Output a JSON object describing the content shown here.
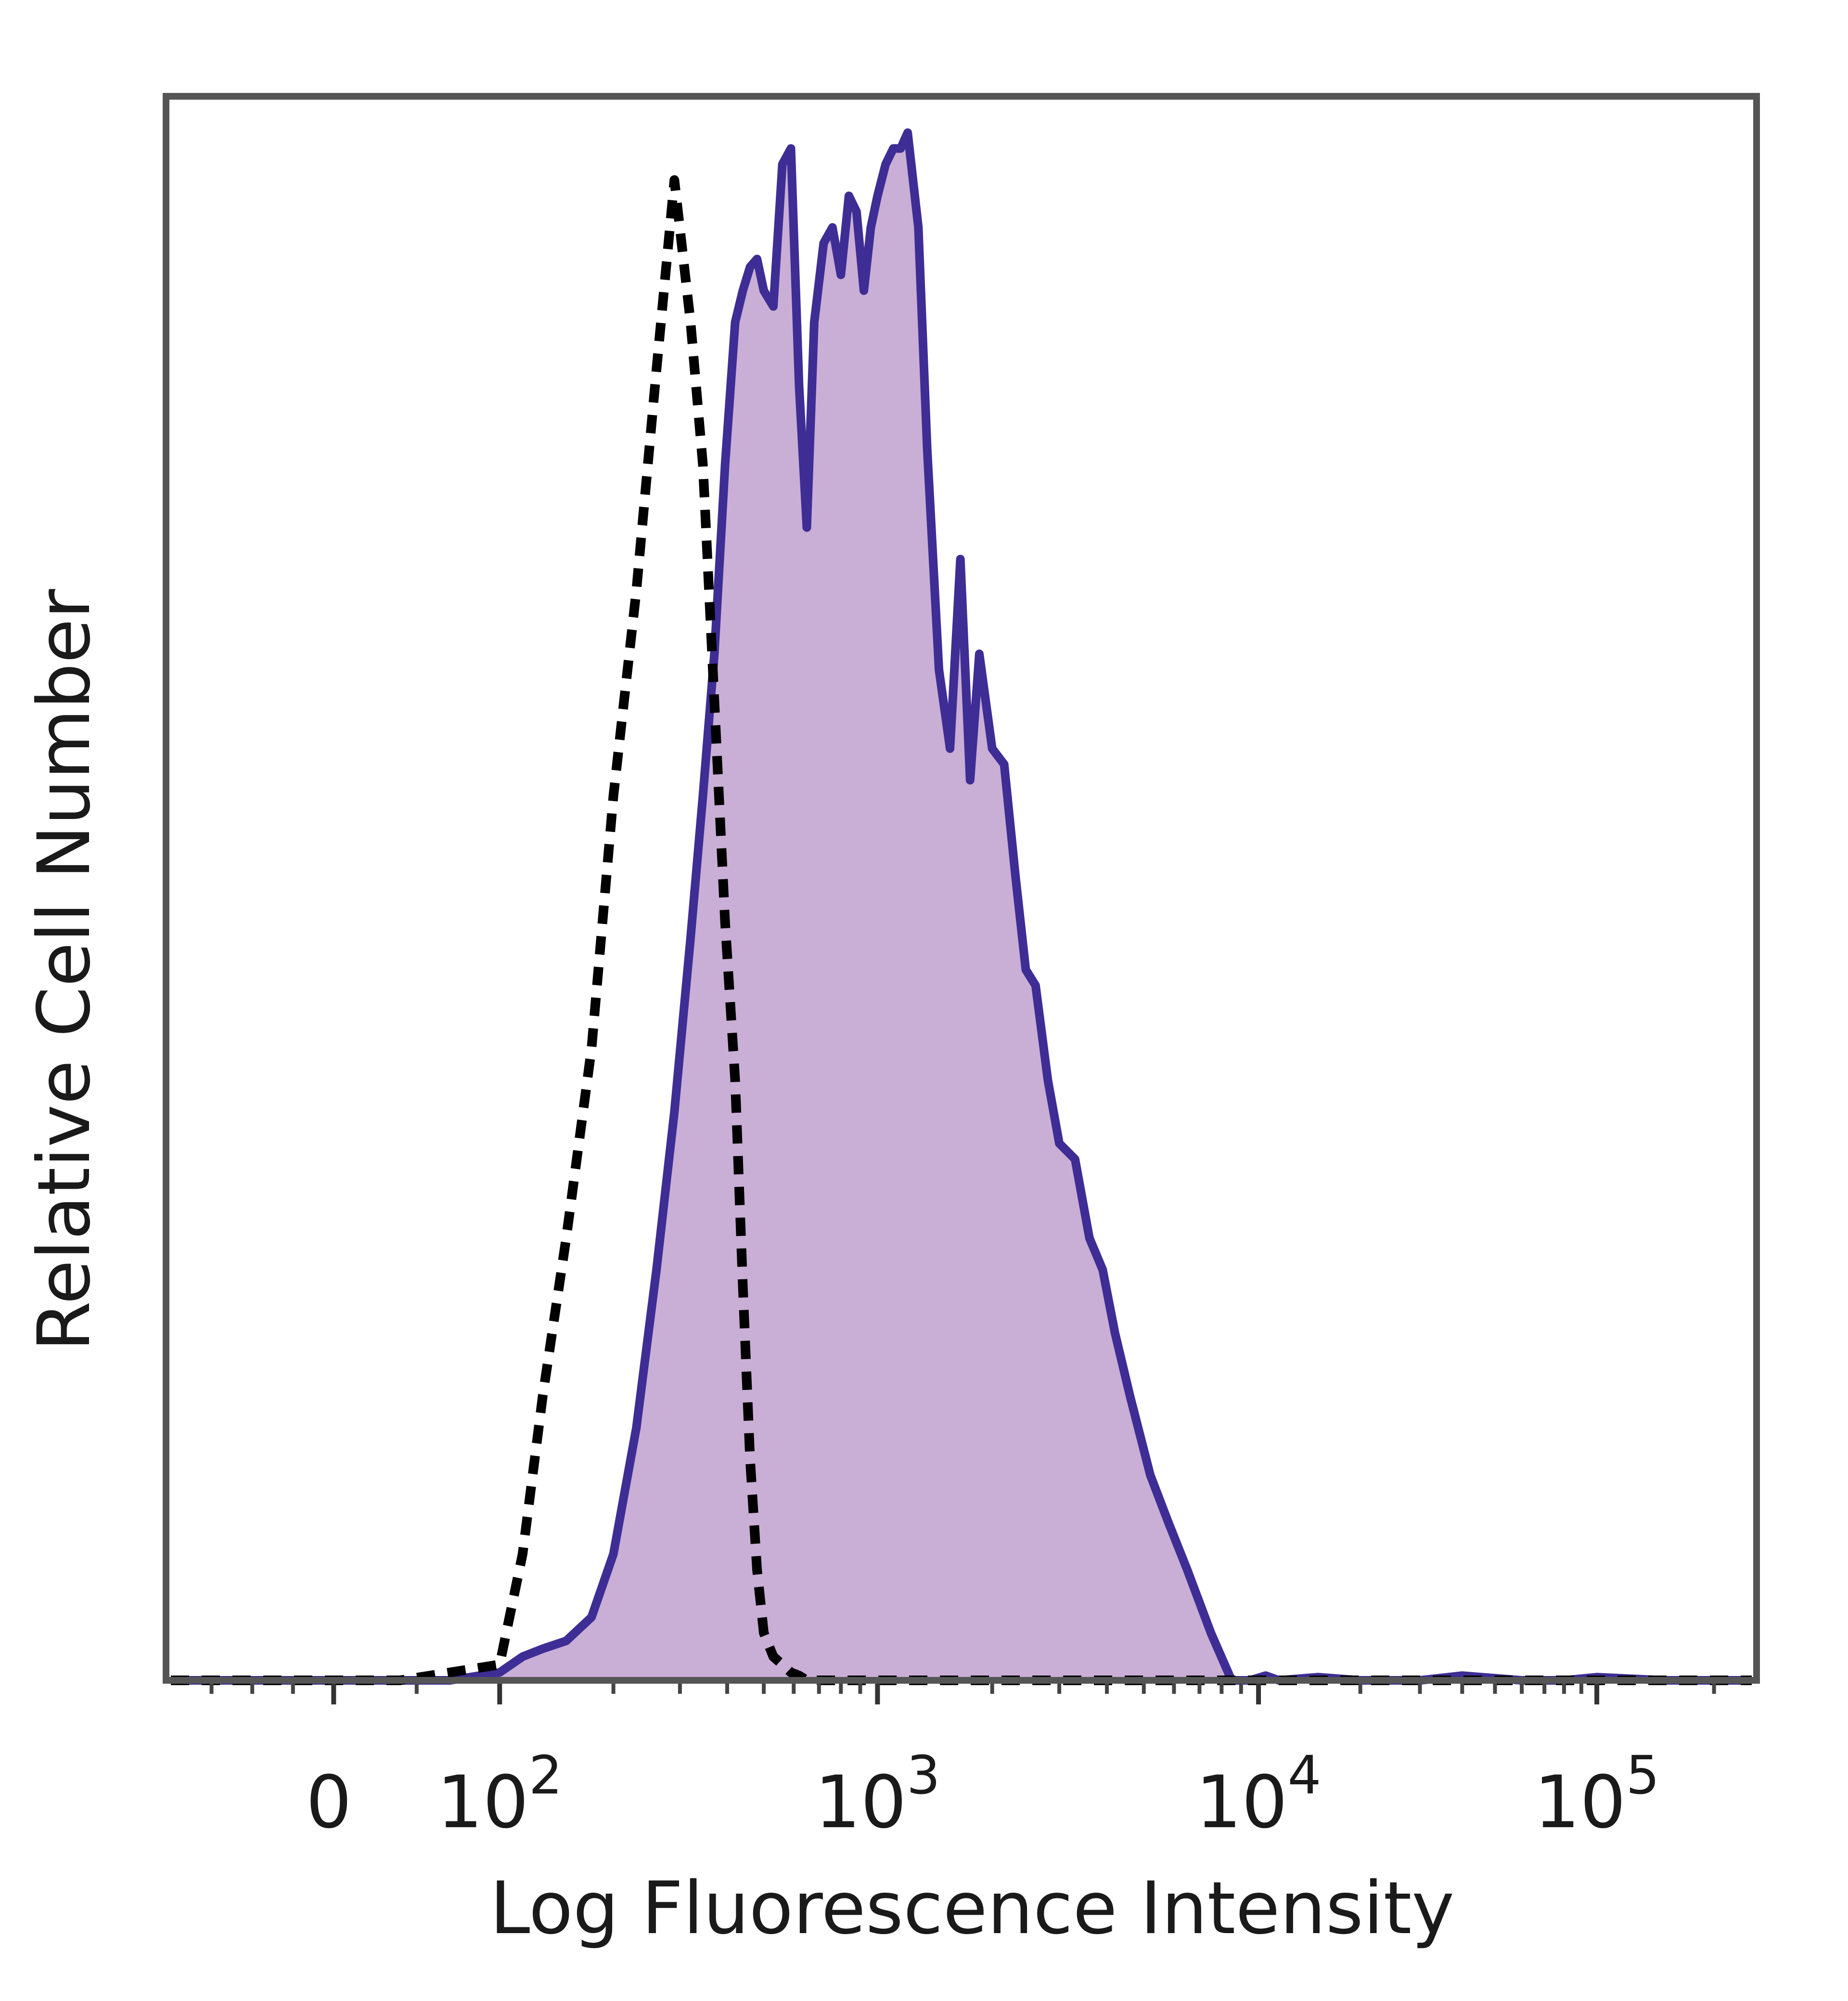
{
  "chart_data": {
    "type": "area",
    "title": "",
    "xlabel": "Log Fluorescence Intensity",
    "ylabel": "Relative Cell Number",
    "x_scale": "biexponential",
    "x_ticks": [
      {
        "value": 0,
        "label_base": "0",
        "label_exp": ""
      },
      {
        "value": 100,
        "label_base": "10",
        "label_exp": "2"
      },
      {
        "value": 1000,
        "label_base": "10",
        "label_exp": "3"
      },
      {
        "value": 10000,
        "label_base": "10",
        "label_exp": "4"
      },
      {
        "value": 100000,
        "label_base": "10",
        "label_exp": "5"
      }
    ],
    "xlim": [
      -200,
      250000
    ],
    "ylim": [
      0,
      100
    ],
    "grid": false,
    "legend": "none",
    "series": [
      {
        "style": "filled",
        "fill_color": "#c9aed6",
        "line_color": "#3e2d94",
        "x": [
          -200,
          -100,
          -40,
          0,
          40,
          70,
          100,
          115,
          130,
          150,
          175,
          200,
          230,
          260,
          290,
          320,
          345,
          370,
          395,
          420,
          440,
          460,
          480,
          500,
          530,
          560,
          590,
          620,
          650,
          680,
          720,
          760,
          800,
          840,
          880,
          920,
          960,
          1000,
          1050,
          1100,
          1150,
          1200,
          1280,
          1350,
          1450,
          1550,
          1650,
          1750,
          1850,
          2000,
          2150,
          2300,
          2450,
          2600,
          2800,
          3000,
          3300,
          3600,
          3900,
          4200,
          4600,
          5200,
          5800,
          6500,
          7500,
          8500,
          9500,
          10500,
          11500,
          15000,
          20000,
          30000,
          40000,
          60000,
          80000,
          100000,
          150000,
          250000
        ],
        "values": [
          0,
          0,
          0,
          0,
          0,
          0,
          0.5,
          1.5,
          2,
          2.5,
          4,
          8,
          16,
          26,
          36,
          47,
          56,
          65,
          77,
          86,
          88,
          89.5,
          90,
          88,
          87,
          96,
          97,
          82,
          73,
          86,
          91,
          92,
          89,
          94,
          93,
          88,
          92,
          94,
          96,
          97,
          97,
          98,
          92,
          78,
          64,
          59,
          71,
          57,
          65,
          59,
          58,
          51,
          45,
          44,
          38,
          34,
          33,
          28,
          26,
          22,
          18,
          13,
          10,
          7,
          3,
          0,
          0,
          0.3,
          0,
          0.2,
          0,
          0,
          0.3,
          0,
          0,
          0.2,
          0,
          0
        ]
      },
      {
        "style": "dashed",
        "line_color": "#000000",
        "x": [
          -200,
          -100,
          -40,
          0,
          40,
          70,
          100,
          115,
          130,
          150,
          175,
          200,
          230,
          260,
          290,
          320,
          345,
          370,
          395,
          420,
          440,
          460,
          480,
          500,
          530,
          560,
          590,
          620,
          650,
          680,
          720,
          760,
          800,
          840,
          880,
          920,
          960,
          1000,
          1050,
          1100,
          1150,
          1200,
          1280,
          1350,
          1450,
          1550,
          1650,
          1750,
          1850,
          2000,
          2150,
          2300,
          2450,
          2600,
          2800,
          3000,
          3300,
          3600,
          3900,
          4200,
          4600,
          5200,
          5800,
          6500,
          7500,
          8500,
          9500,
          10500,
          11500,
          15000,
          20000,
          30000,
          40000,
          60000,
          80000,
          100000,
          150000,
          250000
        ],
        "values": [
          0,
          0,
          0,
          0,
          0,
          0.5,
          1,
          8,
          18,
          28,
          40,
          56,
          69,
          83,
          95,
          86,
          77,
          62,
          48,
          38,
          25,
          14,
          7,
          3,
          1.5,
          1,
          0.5,
          0.3,
          0,
          0,
          0,
          0,
          0,
          0,
          0,
          0,
          0,
          0,
          0,
          0,
          0,
          0,
          0,
          0,
          0,
          0,
          0,
          0,
          0,
          0,
          0,
          0,
          0,
          0,
          0,
          0,
          0,
          0,
          0,
          0,
          0,
          0,
          0,
          0,
          0,
          0,
          0,
          0,
          0,
          0,
          0,
          0,
          0,
          0,
          0,
          0,
          0,
          0
        ]
      }
    ]
  }
}
